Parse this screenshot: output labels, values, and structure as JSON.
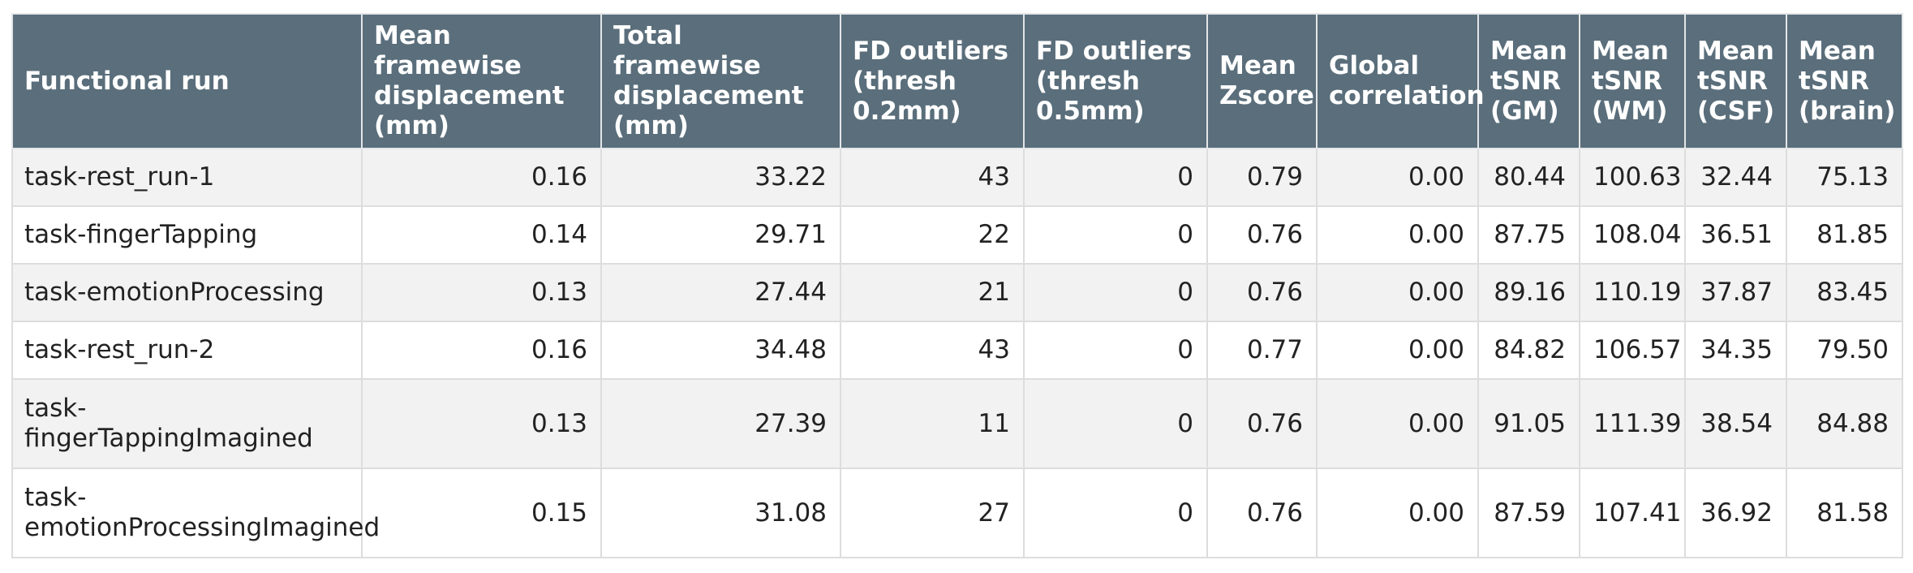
{
  "table": {
    "headers": [
      "Functional run",
      "Mean framewise displacement (mm)",
      "Total framewise displacement (mm)",
      "FD outliers (thresh 0.2mm)",
      "FD outliers (thresh 0.5mm)",
      "Mean Zscore",
      "Global correlation",
      "Mean tSNR (GM)",
      "Mean tSNR (WM)",
      "Mean tSNR (CSF)",
      "Mean tSNR (brain)"
    ],
    "rows": [
      [
        "task-rest_run-1",
        "0.16",
        "33.22",
        "43",
        "0",
        "0.79",
        "0.00",
        "80.44",
        "100.63",
        "32.44",
        "75.13"
      ],
      [
        "task-fingerTapping",
        "0.14",
        "29.71",
        "22",
        "0",
        "0.76",
        "0.00",
        "87.75",
        "108.04",
        "36.51",
        "81.85"
      ],
      [
        "task-emotionProcessing",
        "0.13",
        "27.44",
        "21",
        "0",
        "0.76",
        "0.00",
        "89.16",
        "110.19",
        "37.87",
        "83.45"
      ],
      [
        "task-rest_run-2",
        "0.16",
        "34.48",
        "43",
        "0",
        "0.77",
        "0.00",
        "84.82",
        "106.57",
        "34.35",
        "79.50"
      ],
      [
        "task-fingerTappingImagined",
        "0.13",
        "27.39",
        "11",
        "0",
        "0.76",
        "0.00",
        "91.05",
        "111.39",
        "38.54",
        "84.88"
      ],
      [
        "task-emotionProcessingImagined",
        "0.15",
        "31.08",
        "27",
        "0",
        "0.76",
        "0.00",
        "87.59",
        "107.41",
        "36.92",
        "81.58"
      ]
    ]
  }
}
